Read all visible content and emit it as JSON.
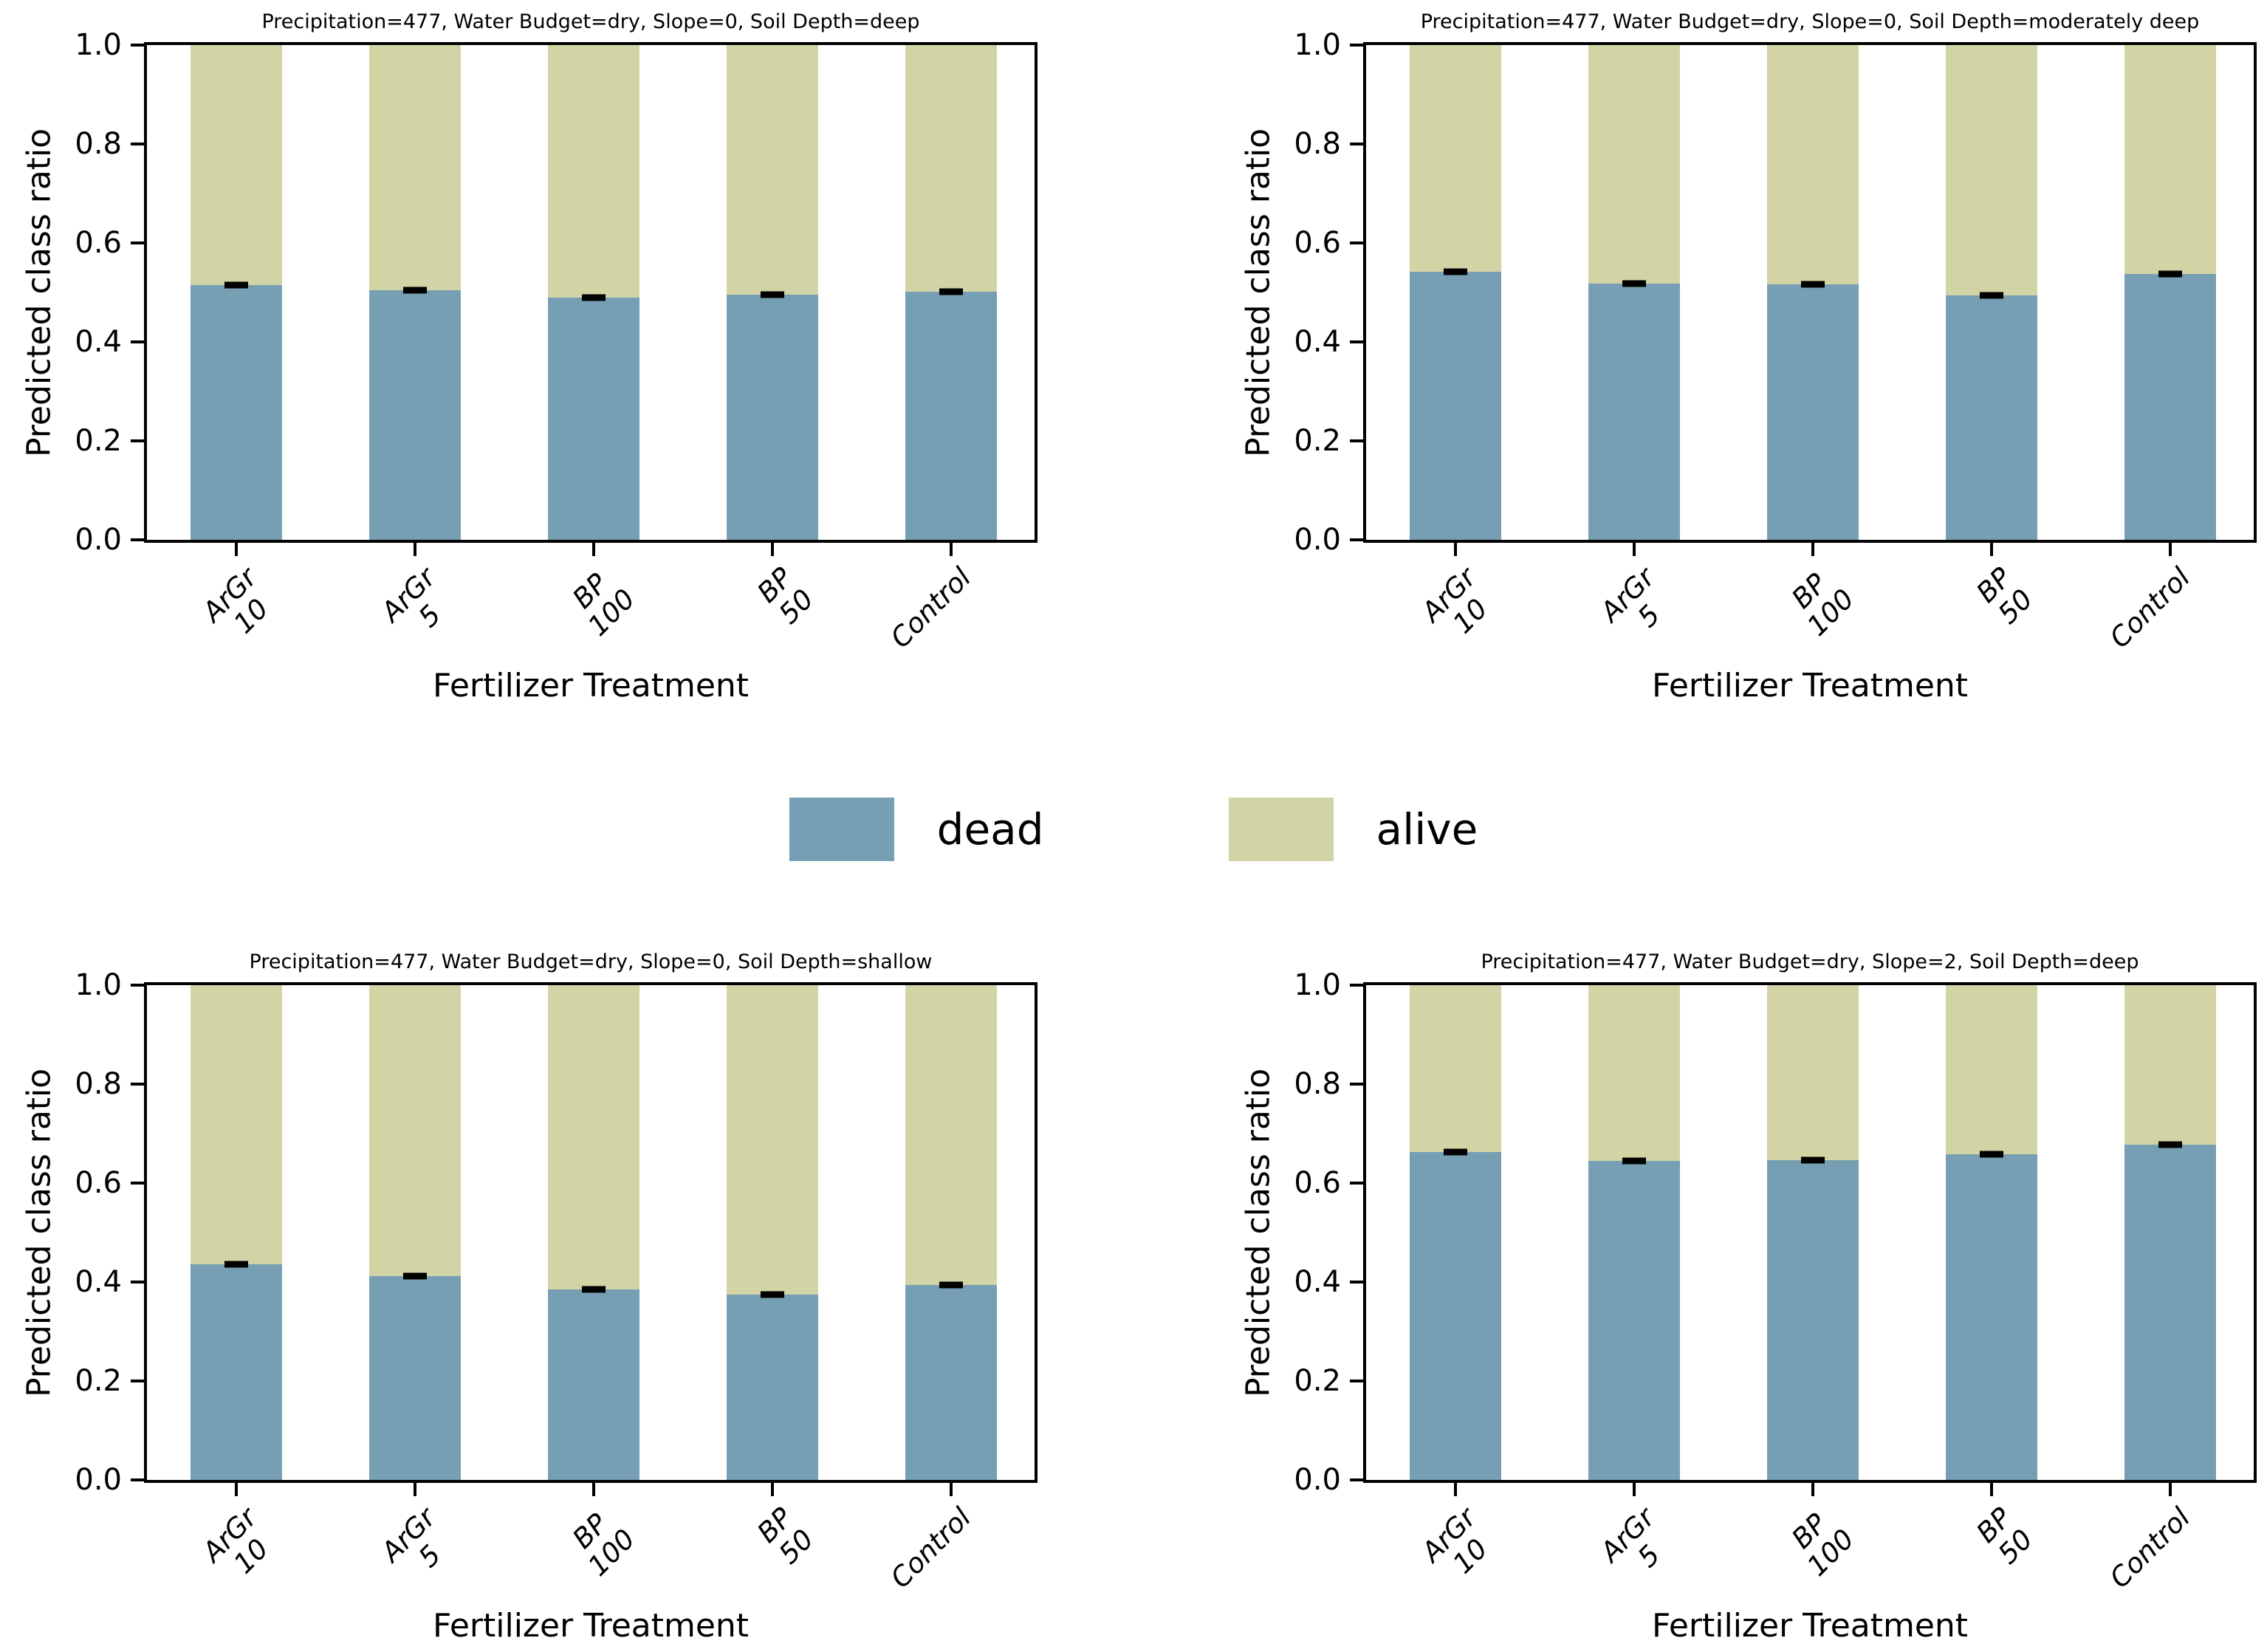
{
  "figure": {
    "background": "#ffffff",
    "dead_color": "#769fb4",
    "alive_color": "#d2d4a6",
    "xlabel": "Fertilizer Treatment",
    "ylabel": "Predicted class ratio"
  },
  "legend": {
    "items": [
      {
        "label": "dead",
        "color": "#769fb4"
      },
      {
        "label": "alive",
        "color": "#d2d4a6"
      }
    ]
  },
  "chart_data": [
    {
      "type": "bar",
      "stacked": true,
      "title": "Precipitation=477, Water Budget=dry, Slope=0, Soil Depth=deep",
      "categories": [
        [
          "ArGr",
          "10"
        ],
        [
          "ArGr",
          "5"
        ],
        [
          "BP",
          "100"
        ],
        [
          "BP",
          "50"
        ],
        [
          "Control"
        ]
      ],
      "xlabel": "Fertilizer Treatment",
      "ylabel": "Predicted class ratio",
      "ylim": [
        0,
        1
      ],
      "yticks": [
        "0.0",
        "0.2",
        "0.4",
        "0.6",
        "0.8",
        "1.0"
      ],
      "legend_position": "figure-center",
      "grid": false,
      "series": [
        {
          "name": "dead",
          "color": "#769fb4",
          "values": [
            0.515,
            0.505,
            0.49,
            0.496,
            0.502
          ]
        },
        {
          "name": "alive",
          "color": "#d2d4a6",
          "values": [
            0.485,
            0.495,
            0.51,
            0.504,
            0.498
          ]
        }
      ],
      "errors": [
        0.006,
        0.005,
        0.005,
        0.005,
        0.005
      ]
    },
    {
      "type": "bar",
      "stacked": true,
      "title": "Precipitation=477, Water Budget=dry, Slope=0, Soil Depth=moderately deep",
      "categories": [
        [
          "ArGr",
          "10"
        ],
        [
          "ArGr",
          "5"
        ],
        [
          "BP",
          "100"
        ],
        [
          "BP",
          "50"
        ],
        [
          "Control"
        ]
      ],
      "xlabel": "Fertilizer Treatment",
      "ylabel": "Predicted class ratio",
      "ylim": [
        0,
        1
      ],
      "yticks": [
        "0.0",
        "0.2",
        "0.4",
        "0.6",
        "0.8",
        "1.0"
      ],
      "grid": false,
      "series": [
        {
          "name": "dead",
          "color": "#769fb4",
          "values": [
            0.542,
            0.518,
            0.517,
            0.494,
            0.537
          ]
        },
        {
          "name": "alive",
          "color": "#d2d4a6",
          "values": [
            0.458,
            0.482,
            0.483,
            0.506,
            0.463
          ]
        }
      ],
      "errors": [
        0.005,
        0.005,
        0.005,
        0.005,
        0.005
      ]
    },
    {
      "type": "bar",
      "stacked": true,
      "title": "Precipitation=477, Water Budget=dry, Slope=0, Soil Depth=shallow",
      "categories": [
        [
          "ArGr",
          "10"
        ],
        [
          "ArGr",
          "5"
        ],
        [
          "BP",
          "100"
        ],
        [
          "BP",
          "50"
        ],
        [
          "Control"
        ]
      ],
      "xlabel": "Fertilizer Treatment",
      "ylabel": "Predicted class ratio",
      "ylim": [
        0,
        1
      ],
      "yticks": [
        "0.0",
        "0.2",
        "0.4",
        "0.6",
        "0.8",
        "1.0"
      ],
      "grid": false,
      "series": [
        {
          "name": "dead",
          "color": "#769fb4",
          "values": [
            0.436,
            0.412,
            0.385,
            0.374,
            0.394
          ]
        },
        {
          "name": "alive",
          "color": "#d2d4a6",
          "values": [
            0.564,
            0.588,
            0.615,
            0.626,
            0.606
          ]
        }
      ],
      "errors": [
        0.006,
        0.005,
        0.005,
        0.004,
        0.005
      ]
    },
    {
      "type": "bar",
      "stacked": true,
      "title": "Precipitation=477, Water Budget=dry, Slope=2, Soil Depth=deep",
      "categories": [
        [
          "ArGr",
          "10"
        ],
        [
          "ArGr",
          "5"
        ],
        [
          "BP",
          "100"
        ],
        [
          "BP",
          "50"
        ],
        [
          "Control"
        ]
      ],
      "xlabel": "Fertilizer Treatment",
      "ylabel": "Predicted class ratio",
      "ylim": [
        0,
        1
      ],
      "yticks": [
        "0.0",
        "0.2",
        "0.4",
        "0.6",
        "0.8",
        "1.0"
      ],
      "grid": false,
      "series": [
        {
          "name": "dead",
          "color": "#769fb4",
          "values": [
            0.662,
            0.645,
            0.646,
            0.658,
            0.678
          ]
        },
        {
          "name": "alive",
          "color": "#d2d4a6",
          "values": [
            0.338,
            0.355,
            0.354,
            0.342,
            0.322
          ]
        }
      ],
      "errors": [
        0.005,
        0.005,
        0.005,
        0.005,
        0.005
      ]
    }
  ]
}
